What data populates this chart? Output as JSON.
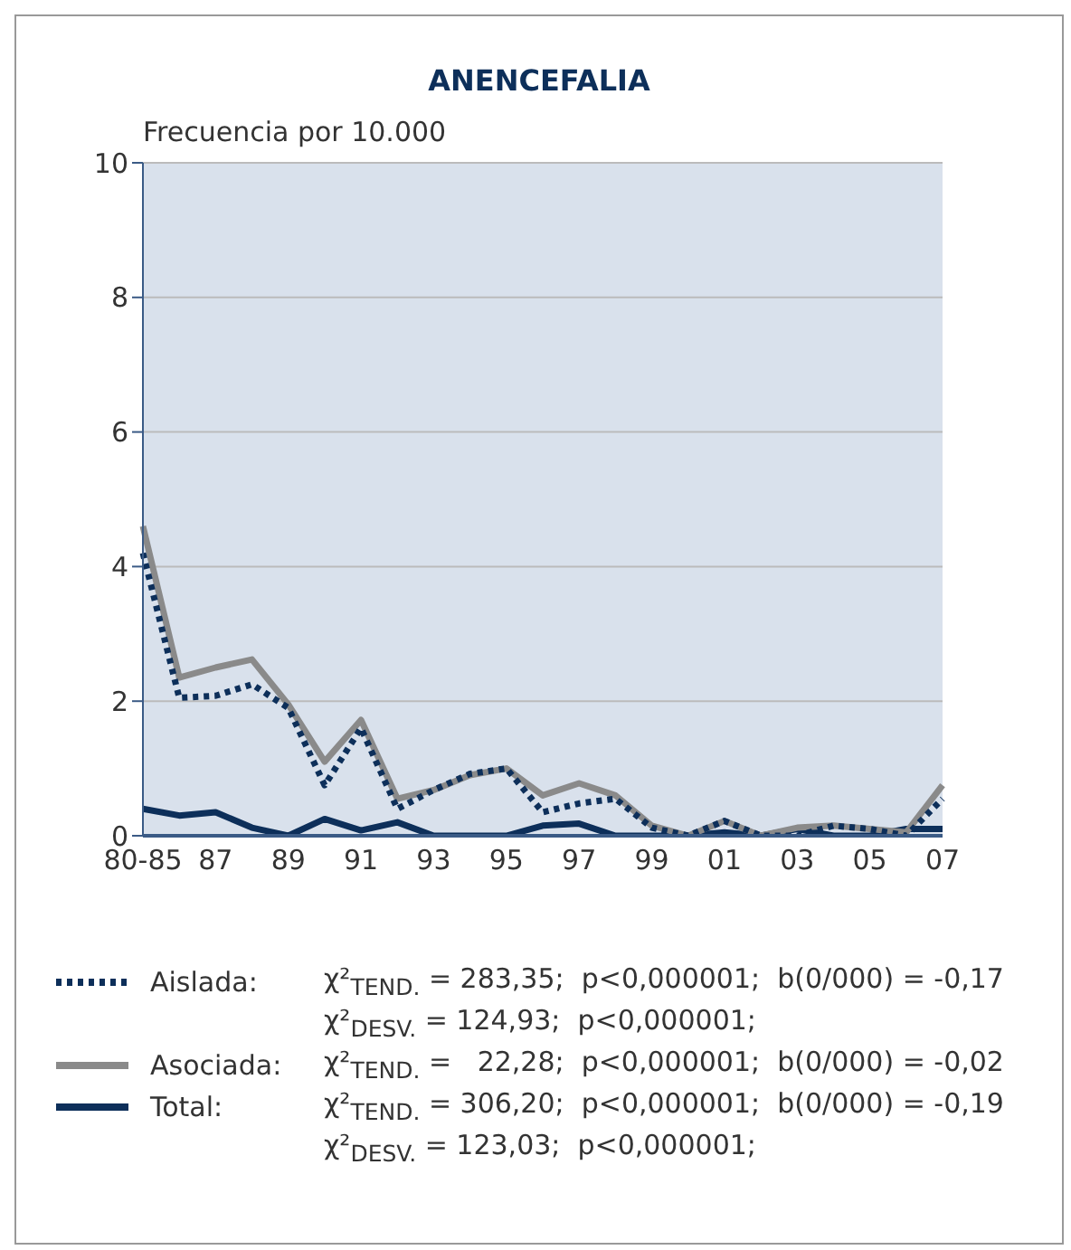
{
  "chart_data": {
    "type": "line",
    "title": "ANENCEFALIA",
    "ylabel": "Frecuencia por 10.000",
    "categories": [
      "80-85",
      null,
      "87",
      null,
      "89",
      null,
      "91",
      null,
      "93",
      null,
      "95",
      null,
      "97",
      null,
      "99",
      null,
      "01",
      null,
      "03",
      null,
      "05",
      null,
      "07"
    ],
    "series": [
      {
        "name": "Aislada:",
        "color": "#0d2f5a",
        "line_style": "dotted",
        "values": [
          4.2,
          2.05,
          2.08,
          2.25,
          1.9,
          0.75,
          1.6,
          0.4,
          0.68,
          0.92,
          1.0,
          0.35,
          0.48,
          0.55,
          0.12,
          0.0,
          0.22,
          0.0,
          0.0,
          0.15,
          0.1,
          0.0,
          0.55
        ]
      },
      {
        "name": "Asociada:",
        "color": "#8a8a8a",
        "line_style": "solid",
        "values": [
          4.6,
          2.35,
          2.5,
          2.62,
          1.95,
          1.1,
          1.72,
          0.55,
          0.68,
          0.9,
          1.0,
          0.6,
          0.78,
          0.6,
          0.15,
          0.0,
          0.22,
          0.0,
          0.12,
          0.15,
          0.1,
          0.05,
          0.75
        ]
      },
      {
        "name": "Total:",
        "color": "#0d2f5a",
        "line_style": "solid",
        "values": [
          0.4,
          0.3,
          0.35,
          0.12,
          0.0,
          0.25,
          0.08,
          0.2,
          0.0,
          0.0,
          0.0,
          0.15,
          0.18,
          0.0,
          0.0,
          0.0,
          0.05,
          0.0,
          0.1,
          0.0,
          0.0,
          0.1,
          0.1
        ]
      }
    ],
    "ylim": [
      0,
      10
    ],
    "yticks": [
      0,
      2,
      4,
      6,
      8,
      10
    ],
    "grid": "y",
    "legend": "bottom",
    "marker": "none",
    "annotations": [
      "χ²$_{TEND.}$ = 283,35;  p<0,000001;  b(0/000) = -0,17",
      "χ²$_{DESV.}$ = 124,93;  p<0,000001;",
      "χ²$_{TEND.}$ =   22,28;  p<0,000001;  b(0/000) = -0,02",
      "χ²$_{TEND.}$ = 306,20;  p<0,000001;  b(0/000) = -0,19",
      "χ²$_{DESV.}$ = 123,03;  p<0,000001;"
    ]
  }
}
